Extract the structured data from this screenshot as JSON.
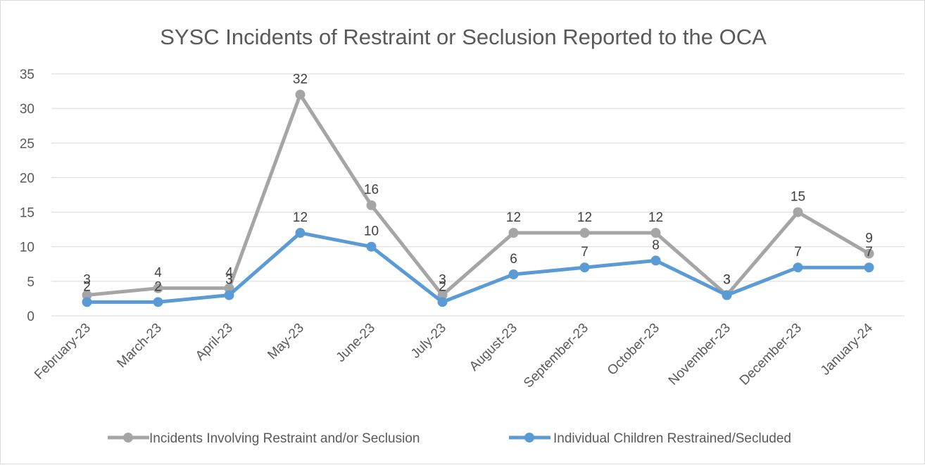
{
  "chart_data": {
    "type": "line",
    "title": "SYSC Incidents of Restraint or Seclusion Reported to the OCA",
    "xlabel": "",
    "ylabel": "",
    "ylim": [
      0,
      35
    ],
    "yticks": [
      "0",
      "5",
      "10",
      "15",
      "20",
      "25",
      "30",
      "35"
    ],
    "grid": true,
    "legend_position": "bottom",
    "categories": [
      "February-23",
      "March-23",
      "April-23",
      "May-23",
      "June-23",
      "July-23",
      "August-23",
      "September-23",
      "October-23",
      "November-23",
      "December-23",
      "January-24"
    ],
    "series": [
      {
        "name": "Incidents Involving Restraint and/or Seclusion",
        "color": "#a5a5a5",
        "values": [
          3,
          4,
          4,
          32,
          16,
          3,
          12,
          12,
          12,
          3,
          15,
          9
        ]
      },
      {
        "name": "Individual Children Restrained/Secluded",
        "color": "#5b9bd5",
        "values": [
          2,
          2,
          3,
          12,
          10,
          2,
          6,
          7,
          8,
          3,
          7,
          7
        ]
      }
    ]
  }
}
